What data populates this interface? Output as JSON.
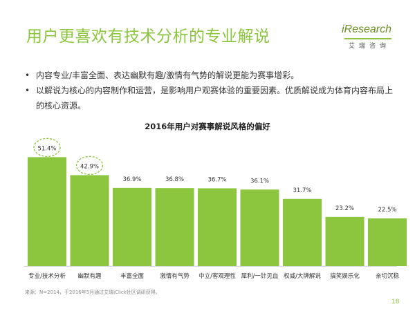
{
  "header": {
    "title": "用户更喜欢有技术分析的专业解说",
    "logo_text": "iResearch",
    "logo_cn": "艾瑞咨询"
  },
  "bullets": [
    "内容专业/丰富全面、表达幽默有趣/激情有气势的解说更能为赛事增彩。",
    "以解说为核心的内容制作和运营，是影响用户观赛体验的重要因素。优质解说成为体育内容布局上的核心资源。"
  ],
  "bullet_marker": "•",
  "chart_data": {
    "type": "bar",
    "title": "2016年用户对赛事解说风格的偏好",
    "categories": [
      "专业/技术分析",
      "幽默有趣",
      "丰富全面",
      "激情有气势",
      "中立/客观理性",
      "犀利/一针见血",
      "权威/大牌解说",
      "搞笑娱乐化",
      "亲切沉稳"
    ],
    "values": [
      51.4,
      42.9,
      36.9,
      36.8,
      36.7,
      36.1,
      31.7,
      23.2,
      22.5
    ],
    "value_labels": [
      "51.4%",
      "42.9%",
      "36.9%",
      "36.8%",
      "36.7%",
      "36.1%",
      "31.7%",
      "23.2%",
      "22.5%"
    ],
    "highlighted": [
      0,
      1
    ],
    "bar_color": "#8cc63f",
    "highlight_color": "#8cc63f",
    "ylim": [
      0,
      60
    ],
    "grid": false,
    "legend": "none"
  },
  "footer": {
    "source": "来源：N=2014，于2016年5月通过艾瑞iClick社区调研获得。",
    "page_number": "18"
  }
}
